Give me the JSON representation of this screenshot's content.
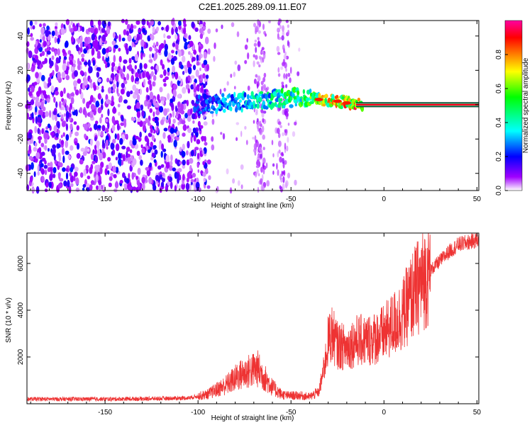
{
  "figure_title": "C2E1.2025.289.09.11.E07",
  "colorscale": {
    "colors": [
      "#ffffff",
      "#a000ff",
      "#0000ff",
      "#00ffff",
      "#00ff00",
      "#ffff00",
      "#ff8000",
      "#ff0000",
      "#ff00a0"
    ],
    "stops": [
      0,
      0.08,
      0.2,
      0.35,
      0.55,
      0.7,
      0.8,
      0.9,
      1.0
    ]
  },
  "chart_data": [
    {
      "type": "heatmap",
      "xlabel": "Height of straight line (km)",
      "ylabel": "Frequency (Hz)",
      "xlim": [
        -192,
        51
      ],
      "ylim": [
        -50,
        49
      ],
      "xticks": [
        -150,
        -100,
        -50,
        0,
        50
      ],
      "yticks": [
        -40,
        -20,
        0,
        20,
        40
      ],
      "colorbar": {
        "label": "Normalized spectral amplitude",
        "range": [
          0,
          1
        ],
        "ticks": [
          0.0,
          0.2,
          0.4,
          0.6,
          0.8
        ]
      },
      "description_points": {
        "noise_region_x": [
          -192,
          -100
        ],
        "signal_track": [
          {
            "x": -102,
            "y": 0
          },
          {
            "x": -95,
            "y": 0
          },
          {
            "x": -85,
            "y": 1
          },
          {
            "x": -75,
            "y": 2
          },
          {
            "x": -65,
            "y": 3
          },
          {
            "x": -55,
            "y": 4
          },
          {
            "x": -45,
            "y": 4
          },
          {
            "x": -35,
            "y": 3
          },
          {
            "x": -25,
            "y": 2
          },
          {
            "x": -15,
            "y": 0
          },
          {
            "x": 0,
            "y": 0
          },
          {
            "x": 25,
            "y": 0
          },
          {
            "x": 51,
            "y": 0
          }
        ],
        "line_amplitude": [
          {
            "x": -102,
            "v": 0.25
          },
          {
            "x": -80,
            "v": 0.4
          },
          {
            "x": -60,
            "v": 0.5
          },
          {
            "x": -45,
            "v": 0.6
          },
          {
            "x": -30,
            "v": 0.8
          },
          {
            "x": -15,
            "v": 0.92
          },
          {
            "x": 51,
            "v": 0.92
          }
        ]
      }
    },
    {
      "type": "line",
      "xlabel": "Height of straight line (km)",
      "ylabel": "SNR (10 * v/v)",
      "xlim": [
        -192,
        51
      ],
      "ylim": [
        0,
        7300
      ],
      "xticks": [
        -150,
        -100,
        -50,
        0,
        50
      ],
      "yticks": [
        2000,
        4000,
        6000
      ],
      "series": [
        {
          "name": "SNR",
          "color": "#ee3333",
          "x": [
            -192,
            -150,
            -120,
            -105,
            -95,
            -85,
            -78,
            -72,
            -68,
            -65,
            -60,
            -55,
            -52,
            -45,
            -40,
            -35,
            -32,
            -30,
            -28,
            -25,
            -20,
            -15,
            -10,
            -5,
            0,
            5,
            10,
            15,
            20,
            25,
            30,
            35,
            40,
            45,
            50,
            51
          ],
          "y": [
            200,
            200,
            220,
            250,
            400,
            800,
            1200,
            1400,
            1500,
            1200,
            700,
            400,
            350,
            350,
            300,
            500,
            1600,
            2700,
            3000,
            2500,
            2400,
            2700,
            2700,
            2800,
            3000,
            3400,
            3800,
            4600,
            5200,
            5700,
            6100,
            6500,
            6800,
            6900,
            7000,
            7000
          ]
        }
      ]
    }
  ]
}
